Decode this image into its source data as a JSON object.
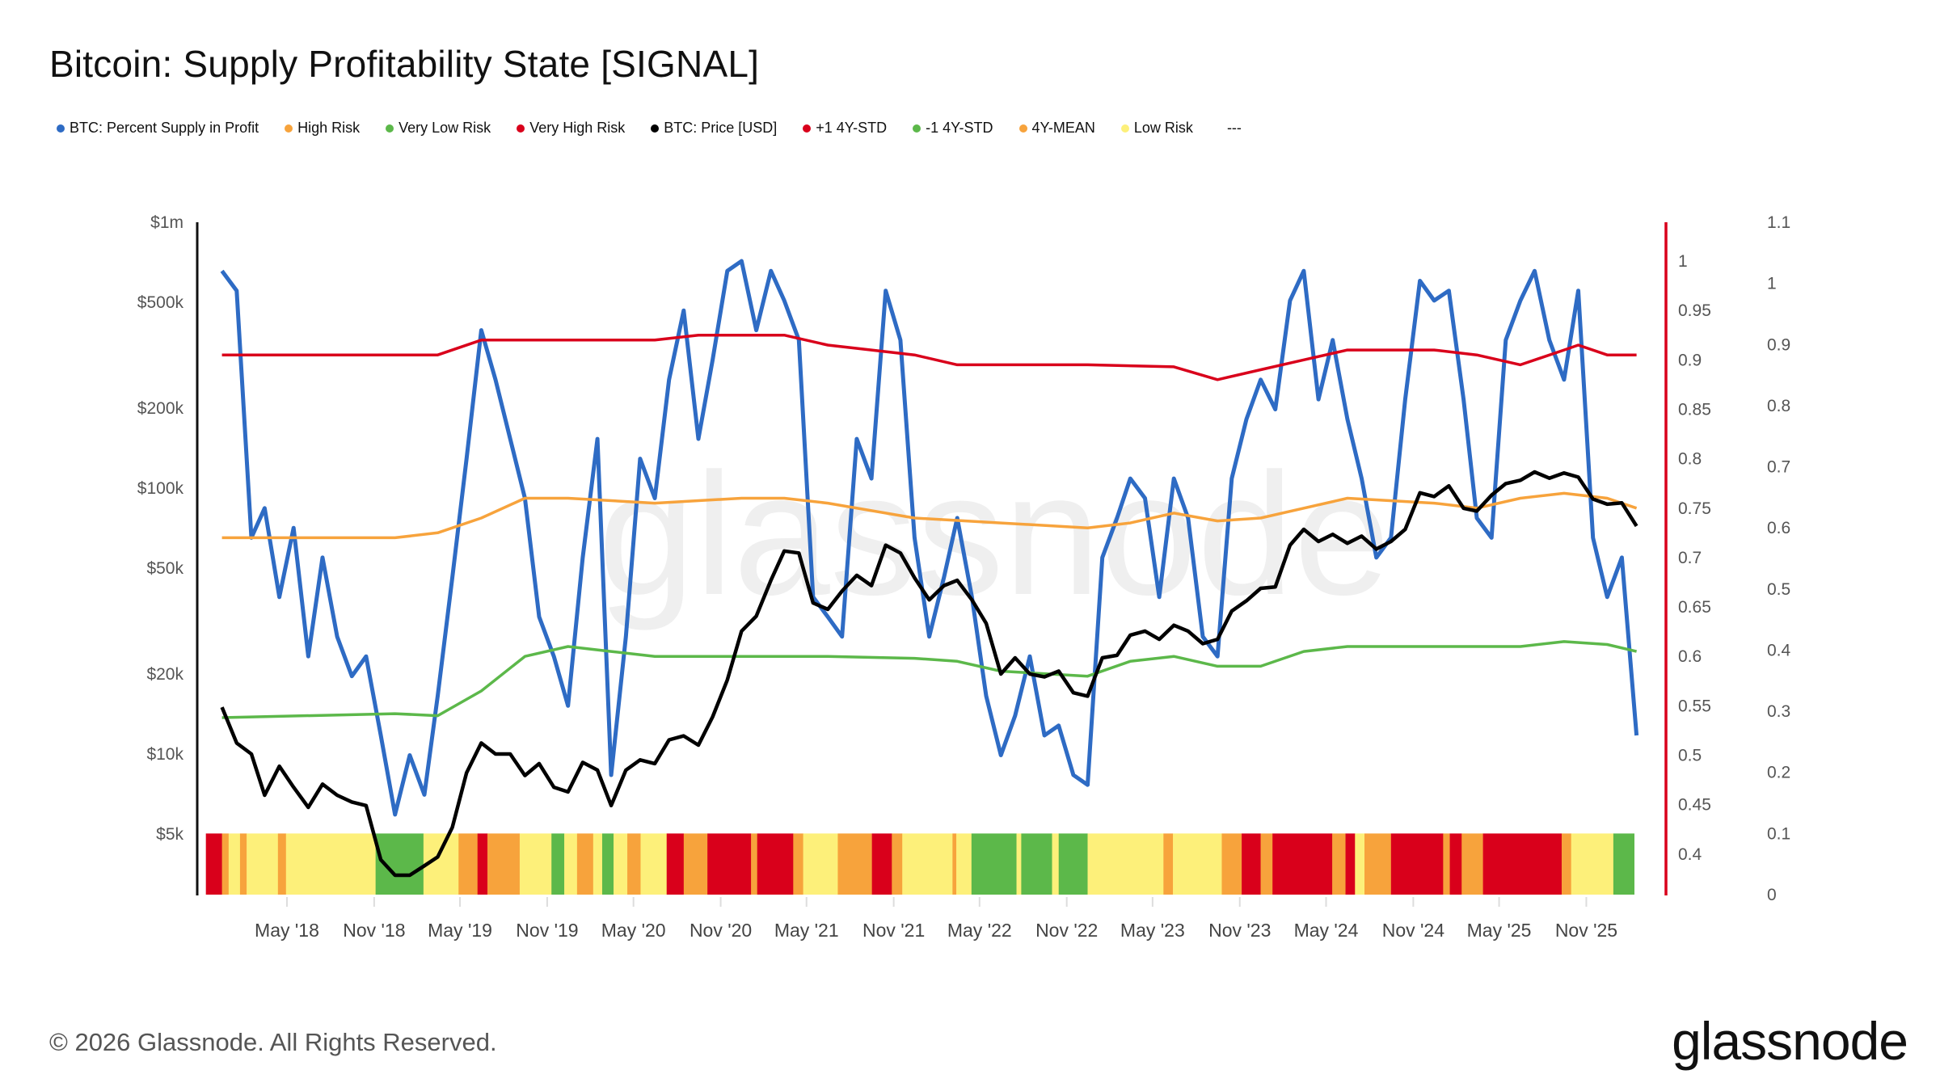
{
  "title": "Bitcoin: Supply Profitability State [SIGNAL]",
  "legend": [
    {
      "label": "BTC: Percent Supply in Profit",
      "color": "#2e6bc4"
    },
    {
      "label": "High Risk",
      "color": "#f7a33c"
    },
    {
      "label": "Very Low Risk",
      "color": "#5cb84a"
    },
    {
      "label": "Very High Risk",
      "color": "#d9001b"
    },
    {
      "label": "BTC: Price [USD]",
      "color": "#000000"
    },
    {
      "label": "+1 4Y-STD",
      "color": "#d9001b"
    },
    {
      "label": "-1 4Y-STD",
      "color": "#5cb84a"
    },
    {
      "label": "4Y-MEAN",
      "color": "#f7a33c"
    },
    {
      "label": "Low Risk",
      "color": "#fdf07a"
    },
    {
      "label": "---",
      "color": ""
    }
  ],
  "footer": "© 2026 Glassnode. All Rights Reserved.",
  "logo": "glassnode",
  "watermark": "glassnode",
  "chart_data": {
    "type": "line",
    "title": "Bitcoin: Supply Profitability State [SIGNAL]",
    "x_ticks": [
      "May '18",
      "Nov '18",
      "May '19",
      "Nov '19",
      "May '20",
      "Nov '20",
      "May '21",
      "Nov '21",
      "May '22",
      "Nov '22",
      "May '23",
      "Nov '23",
      "May '24",
      "Nov '24",
      "May '25",
      "Nov '25"
    ],
    "x_tick_dates": [
      "2018-05",
      "2018-11",
      "2019-05",
      "2019-11",
      "2020-05",
      "2020-11",
      "2021-05",
      "2021-11",
      "2022-05",
      "2022-11",
      "2023-05",
      "2023-11",
      "2024-05",
      "2024-11",
      "2025-05",
      "2025-11"
    ],
    "y_left": {
      "scale": "log",
      "ticks": [
        1000000,
        500000,
        200000,
        100000,
        50000,
        20000,
        10000,
        5000
      ],
      "tick_labels": [
        "$1m",
        "$500k",
        "$200k",
        "$100k",
        "$50k",
        "$20k",
        "$10k",
        "$5k"
      ]
    },
    "y_middle": {
      "scale": "linear",
      "ticks": [
        1,
        0.95,
        0.9,
        0.85,
        0.8,
        0.75,
        0.7,
        0.65,
        0.6,
        0.55,
        0.5,
        0.45,
        0.4
      ],
      "tick_labels": [
        "1",
        "0.95",
        "0.9",
        "0.85",
        "0.8",
        "0.75",
        "0.7",
        "0.65",
        "0.6",
        "0.55",
        "0.5",
        "0.45",
        "0.4"
      ],
      "axis_color": "#d9001b"
    },
    "y_right": {
      "scale": "linear",
      "range": [
        0,
        1.1
      ],
      "ticks": [
        1.1,
        1,
        0.9,
        0.8,
        0.7,
        0.6,
        0.5,
        0.4,
        0.3,
        0.2,
        0.1,
        0
      ],
      "tick_labels": [
        "1.1",
        "1",
        "0.9",
        "0.8",
        "0.7",
        "0.6",
        "0.5",
        "0.4",
        "0.3",
        "0.2",
        "0.1",
        "0"
      ]
    },
    "monthly_start": "2017-12",
    "series": [
      {
        "name": "BTC: Percent Supply in Profit",
        "axis": "middle",
        "color": "#2e6bc4",
        "values": [
          0.99,
          0.97,
          0.72,
          0.75,
          0.66,
          0.73,
          0.6,
          0.7,
          0.62,
          0.58,
          0.6,
          0.52,
          0.44,
          0.5,
          0.46,
          0.56,
          0.68,
          0.8,
          0.93,
          0.88,
          0.82,
          0.76,
          0.64,
          0.6,
          0.55,
          0.7,
          0.82,
          0.48,
          0.62,
          0.8,
          0.76,
          0.88,
          0.95,
          0.82,
          0.9,
          0.99,
          1.0,
          0.93,
          0.99,
          0.96,
          0.92,
          0.66,
          0.64,
          0.62,
          0.82,
          0.78,
          0.97,
          0.92,
          0.72,
          0.62,
          0.68,
          0.74,
          0.66,
          0.56,
          0.5,
          0.54,
          0.6,
          0.52,
          0.53,
          0.48,
          0.47,
          0.7,
          0.74,
          0.78,
          0.76,
          0.66,
          0.78,
          0.74,
          0.62,
          0.6,
          0.78,
          0.84,
          0.88,
          0.85,
          0.96,
          0.99,
          0.86,
          0.92,
          0.84,
          0.78,
          0.7,
          0.72,
          0.86,
          0.98,
          0.96,
          0.97,
          0.86,
          0.74,
          0.72,
          0.92,
          0.96,
          0.99,
          0.92,
          0.88,
          0.97,
          0.72,
          0.66,
          0.7,
          0.52
        ]
      },
      {
        "name": "BTC: Price [USD]",
        "axis": "left",
        "color": "#000000",
        "values": [
          15000,
          11000,
          10000,
          7000,
          9000,
          7500,
          6300,
          7700,
          7000,
          6600,
          6400,
          4000,
          3500,
          3500,
          3800,
          4100,
          5300,
          8500,
          11000,
          10000,
          10000,
          8300,
          9200,
          7500,
          7200,
          9300,
          8700,
          6400,
          8700,
          9500,
          9200,
          11300,
          11700,
          10800,
          13800,
          19000,
          29000,
          33000,
          45000,
          58000,
          57000,
          37000,
          35000,
          41000,
          47000,
          43000,
          61000,
          57000,
          46000,
          38000,
          43000,
          45000,
          38000,
          31000,
          20000,
          23000,
          20000,
          19500,
          20500,
          17000,
          16500,
          23000,
          23500,
          28000,
          29000,
          27000,
          30500,
          29000,
          26000,
          27000,
          34500,
          37700,
          42000,
          42500,
          61000,
          70000,
          63000,
          67000,
          62000,
          66000,
          59000,
          63000,
          70000,
          96000,
          93000,
          102000,
          84000,
          82000,
          94000,
          104000,
          107000,
          115000,
          109000,
          114000,
          110000,
          91000,
          87000,
          88000,
          72000
        ]
      }
    ],
    "bands": [
      {
        "name": "+1 4Y-STD",
        "axis": "middle",
        "color": "#d9001b",
        "points": [
          [
            "2017-12",
            0.905
          ],
          [
            "2018-06",
            0.905
          ],
          [
            "2018-12",
            0.905
          ],
          [
            "2019-03",
            0.905
          ],
          [
            "2019-06",
            0.92
          ],
          [
            "2019-12",
            0.92
          ],
          [
            "2020-06",
            0.92
          ],
          [
            "2020-09",
            0.925
          ],
          [
            "2021-03",
            0.925
          ],
          [
            "2021-06",
            0.915
          ],
          [
            "2021-09",
            0.91
          ],
          [
            "2021-12",
            0.905
          ],
          [
            "2022-03",
            0.895
          ],
          [
            "2022-12",
            0.895
          ],
          [
            "2023-06",
            0.893
          ],
          [
            "2023-09",
            0.88
          ],
          [
            "2023-12",
            0.89
          ],
          [
            "2024-03",
            0.9
          ],
          [
            "2024-06",
            0.91
          ],
          [
            "2024-12",
            0.91
          ],
          [
            "2025-03",
            0.905
          ],
          [
            "2025-06",
            0.895
          ],
          [
            "2025-09",
            0.91
          ],
          [
            "2025-10",
            0.915
          ],
          [
            "2025-12",
            0.905
          ],
          [
            "2026-02",
            0.905
          ]
        ]
      },
      {
        "name": "4Y-MEAN",
        "axis": "middle",
        "color": "#f7a33c",
        "points": [
          [
            "2017-12",
            0.72
          ],
          [
            "2018-12",
            0.72
          ],
          [
            "2019-03",
            0.725
          ],
          [
            "2019-06",
            0.74
          ],
          [
            "2019-09",
            0.76
          ],
          [
            "2019-12",
            0.76
          ],
          [
            "2020-06",
            0.755
          ],
          [
            "2020-12",
            0.76
          ],
          [
            "2021-03",
            0.76
          ],
          [
            "2021-06",
            0.755
          ],
          [
            "2021-12",
            0.74
          ],
          [
            "2022-06",
            0.735
          ],
          [
            "2022-12",
            0.73
          ],
          [
            "2023-03",
            0.735
          ],
          [
            "2023-06",
            0.745
          ],
          [
            "2023-09",
            0.737
          ],
          [
            "2023-12",
            0.74
          ],
          [
            "2024-06",
            0.76
          ],
          [
            "2024-12",
            0.755
          ],
          [
            "2025-03",
            0.75
          ],
          [
            "2025-06",
            0.76
          ],
          [
            "2025-09",
            0.765
          ],
          [
            "2025-12",
            0.76
          ],
          [
            "2026-02",
            0.75
          ]
        ]
      },
      {
        "name": "-1 4Y-STD",
        "axis": "middle",
        "color": "#5cb84a",
        "points": [
          [
            "2017-12",
            0.538
          ],
          [
            "2018-12",
            0.542
          ],
          [
            "2019-03",
            0.54
          ],
          [
            "2019-06",
            0.565
          ],
          [
            "2019-09",
            0.6
          ],
          [
            "2019-12",
            0.61
          ],
          [
            "2020-03",
            0.605
          ],
          [
            "2020-06",
            0.6
          ],
          [
            "2020-12",
            0.6
          ],
          [
            "2021-06",
            0.6
          ],
          [
            "2021-12",
            0.598
          ],
          [
            "2022-03",
            0.595
          ],
          [
            "2022-06",
            0.585
          ],
          [
            "2022-12",
            0.58
          ],
          [
            "2023-03",
            0.595
          ],
          [
            "2023-06",
            0.6
          ],
          [
            "2023-09",
            0.59
          ],
          [
            "2023-12",
            0.59
          ],
          [
            "2024-03",
            0.605
          ],
          [
            "2024-06",
            0.61
          ],
          [
            "2024-12",
            0.61
          ],
          [
            "2025-06",
            0.61
          ],
          [
            "2025-09",
            0.615
          ],
          [
            "2025-12",
            0.612
          ],
          [
            "2026-02",
            0.605
          ]
        ]
      }
    ],
    "risk_state_colors": {
      "Very High Risk": "#d9001b",
      "High Risk": "#f7a33c",
      "Low Risk": "#fdf07a",
      "Very Low Risk": "#5cb84a"
    },
    "risk_state_level": 0.1,
    "risk_states": [
      [
        "2017-11-11",
        "2017-12-15",
        "Very High Risk"
      ],
      [
        "2017-12-15",
        "2017-12-29",
        "High Risk"
      ],
      [
        "2017-12-29",
        "2018-01-22",
        "Low Risk"
      ],
      [
        "2018-01-22",
        "2018-02-05",
        "High Risk"
      ],
      [
        "2018-02-05",
        "2018-04-12",
        "Low Risk"
      ],
      [
        "2018-04-12",
        "2018-04-29",
        "High Risk"
      ],
      [
        "2018-04-29",
        "2018-11-04",
        "Low Risk"
      ],
      [
        "2018-11-04",
        "2019-02-13",
        "Very Low Risk"
      ],
      [
        "2019-02-13",
        "2019-04-28",
        "Low Risk"
      ],
      [
        "2019-04-28",
        "2019-06-07",
        "High Risk"
      ],
      [
        "2019-06-07",
        "2019-06-28",
        "Very High Risk"
      ],
      [
        "2019-06-28",
        "2019-09-04",
        "High Risk"
      ],
      [
        "2019-09-04",
        "2019-11-10",
        "Low Risk"
      ],
      [
        "2019-11-10",
        "2019-12-07",
        "Very Low Risk"
      ],
      [
        "2019-12-07",
        "2020-01-03",
        "Low Risk"
      ],
      [
        "2020-01-03",
        "2020-02-06",
        "High Risk"
      ],
      [
        "2020-02-06",
        "2020-02-25",
        "Low Risk"
      ],
      [
        "2020-02-25",
        "2020-03-20",
        "Very Low Risk"
      ],
      [
        "2020-03-20",
        "2020-04-18",
        "Low Risk"
      ],
      [
        "2020-04-18",
        "2020-05-16",
        "High Risk"
      ],
      [
        "2020-05-16",
        "2020-07-10",
        "Low Risk"
      ],
      [
        "2020-07-10",
        "2020-08-15",
        "Very High Risk"
      ],
      [
        "2020-08-15",
        "2020-10-04",
        "High Risk"
      ],
      [
        "2020-10-04",
        "2021-01-04",
        "Very High Risk"
      ],
      [
        "2021-01-04",
        "2021-01-17",
        "High Risk"
      ],
      [
        "2021-01-17",
        "2021-04-03",
        "Very High Risk"
      ],
      [
        "2021-04-03",
        "2021-04-24",
        "High Risk"
      ],
      [
        "2021-04-24",
        "2021-07-06",
        "Low Risk"
      ],
      [
        "2021-07-06",
        "2021-09-16",
        "High Risk"
      ],
      [
        "2021-09-16",
        "2021-10-28",
        "Very High Risk"
      ],
      [
        "2021-10-28",
        "2021-11-19",
        "High Risk"
      ],
      [
        "2021-11-19",
        "2022-03-05",
        "Low Risk"
      ],
      [
        "2022-03-05",
        "2022-03-13",
        "High Risk"
      ],
      [
        "2022-03-13",
        "2022-04-14",
        "Low Risk"
      ],
      [
        "2022-04-14",
        "2022-07-18",
        "Very Low Risk"
      ],
      [
        "2022-07-18",
        "2022-07-28",
        "Low Risk"
      ],
      [
        "2022-07-28",
        "2022-10-01",
        "Very Low Risk"
      ],
      [
        "2022-10-01",
        "2022-10-15",
        "Low Risk"
      ],
      [
        "2022-10-15",
        "2022-12-15",
        "Very Low Risk"
      ],
      [
        "2022-12-15",
        "2023-05-24",
        "Low Risk"
      ],
      [
        "2023-05-24",
        "2023-06-13",
        "High Risk"
      ],
      [
        "2023-06-13",
        "2023-09-24",
        "Low Risk"
      ],
      [
        "2023-09-24",
        "2023-11-05",
        "High Risk"
      ],
      [
        "2023-11-05",
        "2023-12-15",
        "Very High Risk"
      ],
      [
        "2023-12-15",
        "2024-01-09",
        "High Risk"
      ],
      [
        "2024-01-09",
        "2024-05-14",
        "Very High Risk"
      ],
      [
        "2024-05-14",
        "2024-06-11",
        "High Risk"
      ],
      [
        "2024-06-11",
        "2024-07-01",
        "Very High Risk"
      ],
      [
        "2024-07-01",
        "2024-07-21",
        "Low Risk"
      ],
      [
        "2024-07-21",
        "2024-09-15",
        "High Risk"
      ],
      [
        "2024-09-15",
        "2025-01-03",
        "Very High Risk"
      ],
      [
        "2025-01-03",
        "2025-01-17",
        "High Risk"
      ],
      [
        "2025-01-17",
        "2025-02-11",
        "Very High Risk"
      ],
      [
        "2025-02-11",
        "2025-03-28",
        "High Risk"
      ],
      [
        "2025-03-28",
        "2025-09-10",
        "Very High Risk"
      ],
      [
        "2025-09-10",
        "2025-09-30",
        "High Risk"
      ],
      [
        "2025-09-30",
        "2025-12-28",
        "Low Risk"
      ],
      [
        "2025-12-28",
        "2026-02-10",
        "Very Low Risk"
      ]
    ]
  }
}
